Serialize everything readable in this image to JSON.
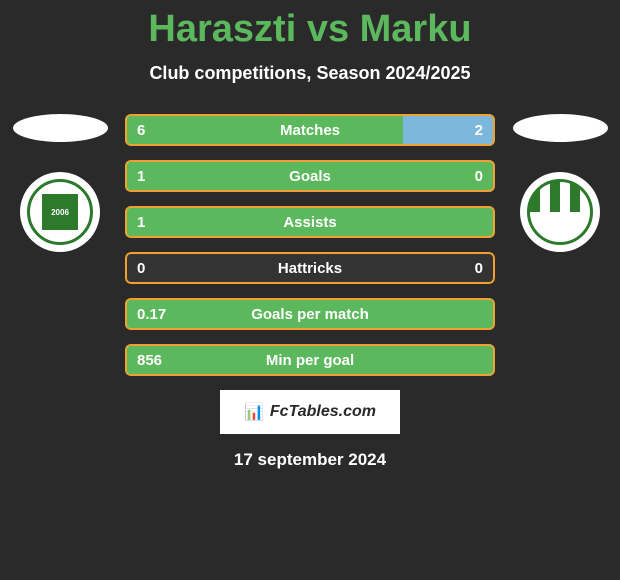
{
  "title": "Haraszti vs Marku",
  "subtitle": "Club competitions, Season 2024/2025",
  "date": "17 september 2024",
  "footer_logo_text": "FcTables.com",
  "colors": {
    "title": "#5cb85c",
    "bar_left": "#5cb85c",
    "bar_right": "#7bb8db",
    "border": "#f0a030",
    "background": "#2a2a2a"
  },
  "stats": [
    {
      "label": "Matches",
      "left_value": "6",
      "right_value": "2",
      "left_pct": 75,
      "right_pct": 25
    },
    {
      "label": "Goals",
      "left_value": "1",
      "right_value": "0",
      "left_pct": 100,
      "right_pct": 0
    },
    {
      "label": "Assists",
      "left_value": "1",
      "right_value": "",
      "left_pct": 100,
      "right_pct": 0
    },
    {
      "label": "Hattricks",
      "left_value": "0",
      "right_value": "0",
      "left_pct": 0,
      "right_pct": 0
    },
    {
      "label": "Goals per match",
      "left_value": "0.17",
      "right_value": "",
      "left_pct": 100,
      "right_pct": 0
    },
    {
      "label": "Min per goal",
      "left_value": "856",
      "right_value": "",
      "left_pct": 100,
      "right_pct": 0
    }
  ]
}
